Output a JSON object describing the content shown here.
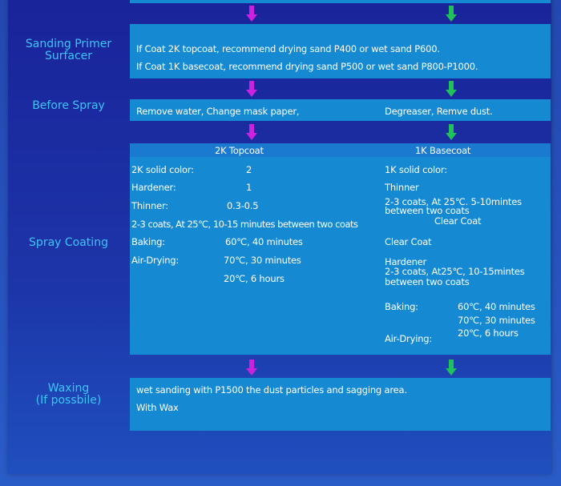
{
  "colors": {
    "box": "#1589d2",
    "label": "#3cc6f6",
    "arrow_left": "#cc22e0",
    "arrow_right": "#1fc25a"
  },
  "sanding": {
    "label": "Sanding Primer Surfacer",
    "lines": [
      "If Coat 2K topcoat, recommend drying sand P400 or wet sand P600.",
      "If Coat 1K basecoat, recommend drying sand P500 or wet sand P800-P1000."
    ]
  },
  "before": {
    "label": "Before Spray",
    "left": "Remove water, Change mask paper,",
    "right": "Degreaser, Remve dust."
  },
  "spray": {
    "label": "Spray Coating",
    "header_left": "2K Topcoat",
    "header_right": "1K Basecoat",
    "left": {
      "solid": "2K solid color:",
      "solid_val": "2",
      "hardener": "Hardener:",
      "hardener_val": "1",
      "thinner": "Thinner:",
      "thinner_val": "0.3-0.5",
      "coats": "2-3 coats, At 25℃, 10-15 minutes between two coats",
      "baking": "Baking:",
      "baking_val": "60℃, 40 minutes",
      "air": "Air-Drying:",
      "air_val1": "70℃, 30 minutes",
      "air_val2": "20℃, 6 hours"
    },
    "right": {
      "solid": "1K solid color:",
      "thinner": "Thinner",
      "coats1": "2-3 coats, At 25℃. 5-10mintes",
      "coats2": "between two coats",
      "clear_center": "Clear Coat",
      "clear": "Clear Coat",
      "hardener": "Hardener",
      "coats3": "2-3 coats, At25℃,  10-15mintes",
      "coats4": "between two coats",
      "baking": "Baking:",
      "val1": "60℃, 40 minutes",
      "val2": "70℃, 30 minutes",
      "val3": "20℃, 6 hours",
      "air": "Air-Drying:"
    }
  },
  "waxing": {
    "label1": "Waxing",
    "label2": "(If possbile)",
    "line1": "wet sanding with P1500 the dust particles and sagging area.",
    "line2": "With Wax"
  }
}
